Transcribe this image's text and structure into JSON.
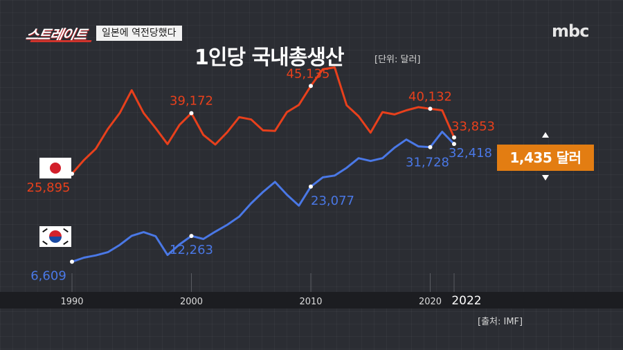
{
  "header": {
    "show_logo": "스트레이트",
    "caption": "일본에 역전당했다",
    "broadcaster": "mbc"
  },
  "title": "1인당 국내총생산",
  "unit": "[단위: 달러]",
  "source": "[출처: IMF]",
  "difference_box": {
    "label": "1,435 달러"
  },
  "colors": {
    "japan": "#e8401c",
    "korea": "#4a78e6",
    "highlight": "#e37d12",
    "background": "#2b2d33"
  },
  "icons": {
    "japan_flag": "japan-flag-icon",
    "korea_flag": "korea-flag-icon"
  },
  "chart_data": {
    "type": "line",
    "x_ticks": [
      "1990",
      "2000",
      "2010",
      "2020",
      "2022"
    ],
    "xlim": [
      1990,
      2022
    ],
    "ylim": [
      0,
      52000
    ],
    "grid": false,
    "series": [
      {
        "name": "japan",
        "color": "#e8401c",
        "points": [
          [
            1990,
            25895
          ],
          [
            1991,
            28900
          ],
          [
            1992,
            31400
          ],
          [
            1993,
            35700
          ],
          [
            1994,
            39200
          ],
          [
            1995,
            44200
          ],
          [
            1996,
            39200
          ],
          [
            1997,
            35900
          ],
          [
            1998,
            32400
          ],
          [
            1999,
            36600
          ],
          [
            2000,
            39172
          ],
          [
            2001,
            34400
          ],
          [
            2002,
            32300
          ],
          [
            2003,
            35000
          ],
          [
            2004,
            38300
          ],
          [
            2005,
            37800
          ],
          [
            2006,
            35400
          ],
          [
            2007,
            35300
          ],
          [
            2008,
            39400
          ],
          [
            2009,
            41000
          ],
          [
            2010,
            45135
          ],
          [
            2011,
            48800
          ],
          [
            2012,
            49200
          ],
          [
            2013,
            40900
          ],
          [
            2014,
            38500
          ],
          [
            2015,
            34900
          ],
          [
            2016,
            39400
          ],
          [
            2017,
            38900
          ],
          [
            2018,
            39800
          ],
          [
            2019,
            40500
          ],
          [
            2020,
            40132
          ],
          [
            2021,
            39800
          ],
          [
            2022,
            33853
          ]
        ],
        "labels": [
          {
            "x": 1990,
            "text": "25,895",
            "pos": "below"
          },
          {
            "x": 2000,
            "text": "39,172",
            "pos": "above"
          },
          {
            "x": 2010,
            "text": "45,135",
            "pos": "above"
          },
          {
            "x": 2020,
            "text": "40,132",
            "pos": "above"
          },
          {
            "x": 2022,
            "text": "33,853",
            "pos": "above"
          }
        ]
      },
      {
        "name": "korea",
        "color": "#4a78e6",
        "points": [
          [
            1990,
            6609
          ],
          [
            1991,
            7500
          ],
          [
            1992,
            8000
          ],
          [
            1993,
            8700
          ],
          [
            1994,
            10300
          ],
          [
            1995,
            12300
          ],
          [
            1996,
            13100
          ],
          [
            1997,
            12200
          ],
          [
            1998,
            8100
          ],
          [
            1999,
            10400
          ],
          [
            2000,
            12263
          ],
          [
            2001,
            11600
          ],
          [
            2002,
            13200
          ],
          [
            2003,
            14700
          ],
          [
            2004,
            16500
          ],
          [
            2005,
            19400
          ],
          [
            2006,
            21900
          ],
          [
            2007,
            24100
          ],
          [
            2008,
            21300
          ],
          [
            2009,
            18900
          ],
          [
            2010,
            23077
          ],
          [
            2011,
            25100
          ],
          [
            2012,
            25500
          ],
          [
            2013,
            27200
          ],
          [
            2014,
            29300
          ],
          [
            2015,
            28700
          ],
          [
            2016,
            29300
          ],
          [
            2017,
            31600
          ],
          [
            2018,
            33400
          ],
          [
            2019,
            31900
          ],
          [
            2020,
            31728
          ],
          [
            2021,
            35100
          ],
          [
            2022,
            32418
          ]
        ],
        "labels": [
          {
            "x": 1990,
            "text": "6,609",
            "pos": "below"
          },
          {
            "x": 2000,
            "text": "12,263",
            "pos": "below"
          },
          {
            "x": 2010,
            "text": "23,077",
            "pos": "below"
          },
          {
            "x": 2020,
            "text": "31,728",
            "pos": "below"
          },
          {
            "x": 2022,
            "text": "32,418",
            "pos": "below"
          }
        ]
      }
    ]
  }
}
